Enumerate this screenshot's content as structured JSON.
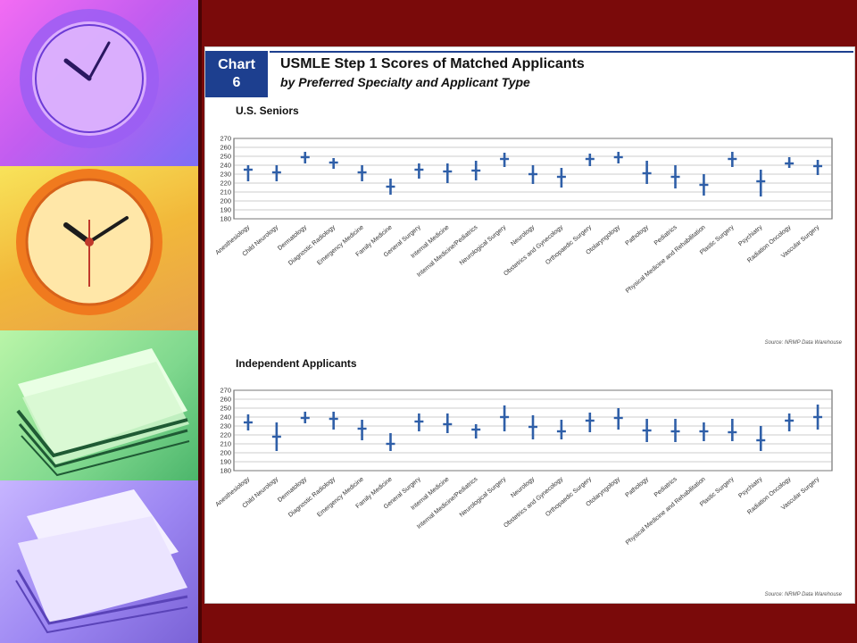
{
  "slide": {
    "badge_line1": "Chart",
    "badge_line2": "6",
    "title": "USMLE Step 1 Scores of Matched Applicants",
    "subtitle": "by Preferred Specialty and Applicant Type"
  },
  "colors": {
    "accent": "#1d3f8f",
    "bar": "#2f5fa8",
    "background": "#7a0a0a"
  },
  "decor": [
    "clock-icon",
    "clock-icon",
    "papers-icon",
    "papers-icon"
  ],
  "chart_data": [
    {
      "type": "range",
      "title": "U.S. Seniors",
      "source": "Source: NRMP Data Warehouse",
      "ylim": [
        180,
        270
      ],
      "yticks": [
        180,
        190,
        200,
        210,
        220,
        230,
        240,
        250,
        260,
        270
      ],
      "grid": true,
      "categories": [
        "Anesthesiology",
        "Child Neurology",
        "Dermatology",
        "Diagnostic Radiology",
        "Emergency Medicine",
        "Family Medicine",
        "General Surgery",
        "Internal Medicine",
        "Internal Medicine/Pediatrics",
        "Neurological Surgery",
        "Neurology",
        "Obstetrics and Gynecology",
        "Orthopaedic Surgery",
        "Otolaryngology",
        "Pathology",
        "Pediatrics",
        "Physical Medicine and Rehabilitation",
        "Plastic Surgery",
        "Psychiatry",
        "Radiation Oncology",
        "Vascular Surgery"
      ],
      "low": [
        222,
        222,
        242,
        236,
        222,
        207,
        225,
        220,
        223,
        238,
        219,
        215,
        239,
        242,
        219,
        214,
        206,
        238,
        205,
        237,
        229
      ],
      "high": [
        240,
        240,
        255,
        248,
        240,
        225,
        242,
        242,
        245,
        254,
        240,
        237,
        253,
        255,
        245,
        240,
        230,
        255,
        235,
        249,
        246
      ],
      "median": [
        235,
        232,
        249,
        243,
        232,
        216,
        235,
        233,
        234,
        247,
        230,
        227,
        247,
        249,
        231,
        227,
        218,
        247,
        222,
        242,
        239
      ]
    },
    {
      "type": "range",
      "title": "Independent Applicants",
      "source": "Source: NRMP Data Warehouse",
      "ylim": [
        180,
        270
      ],
      "yticks": [
        180,
        190,
        200,
        210,
        220,
        230,
        240,
        250,
        260,
        270
      ],
      "grid": true,
      "categories": [
        "Anesthesiology",
        "Child Neurology",
        "Dermatology",
        "Diagnostic Radiology",
        "Emergency Medicine",
        "Family Medicine",
        "General Surgery",
        "Internal Medicine",
        "Internal Medicine/Pediatrics",
        "Neurological Surgery",
        "Neurology",
        "Obstetrics and Gynecology",
        "Orthopaedic Surgery",
        "Otolaryngology",
        "Pathology",
        "Pediatrics",
        "Physical Medicine and Rehabilitation",
        "Plastic Surgery",
        "Psychiatry",
        "Radiation Oncology",
        "Vascular Surgery"
      ],
      "low": [
        225,
        202,
        233,
        226,
        214,
        202,
        224,
        222,
        216,
        224,
        215,
        215,
        223,
        226,
        212,
        212,
        213,
        213,
        202,
        224,
        226
      ],
      "high": [
        243,
        234,
        246,
        246,
        237,
        222,
        244,
        244,
        232,
        253,
        242,
        237,
        245,
        250,
        238,
        238,
        234,
        238,
        230,
        244,
        254
      ],
      "median": [
        234,
        218,
        239,
        238,
        227,
        210,
        235,
        232,
        226,
        240,
        229,
        224,
        236,
        239,
        225,
        224,
        224,
        223,
        214,
        236,
        240
      ]
    }
  ]
}
